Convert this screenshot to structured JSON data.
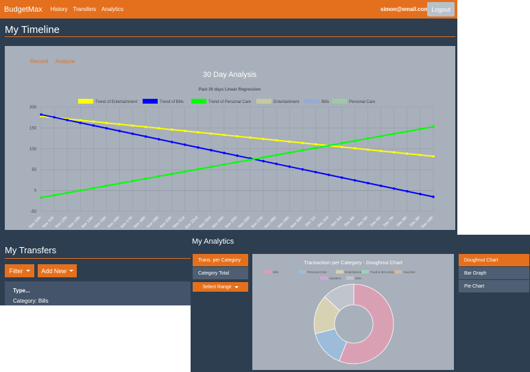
{
  "nav": {
    "brand": "BudgetMax",
    "links": [
      "History",
      "Transfers",
      "Analytics"
    ],
    "email": "simon@email.com",
    "logout": "Logout",
    "accent": "#e4701e"
  },
  "timeline": {
    "title": "My Timeline",
    "tabs": [
      "Record",
      "Analyze"
    ]
  },
  "chart_data": {
    "type": "line",
    "title": "30 Day Analysis",
    "subtitle": "Past 30 days Linear Regression",
    "legend": [
      {
        "name": "Trend of Entertainment",
        "color": "#ffff00"
      },
      {
        "name": "Trend of Bills",
        "color": "#0000ff"
      },
      {
        "name": "Trend of Personal Care",
        "color": "#00ff00"
      },
      {
        "name": "Entertainment",
        "color": "#c8c8a0"
      },
      {
        "name": "Bills",
        "color": "#9ba8d4"
      },
      {
        "name": "Personal Care",
        "color": "#a0c8a8"
      }
    ],
    "legend_position": "top",
    "yticks": [
      "200",
      "150",
      "100",
      "50",
      "0",
      "-50"
    ],
    "ylim": [
      -50,
      200
    ],
    "x": [
      "Nov 10th",
      "Nov 11th",
      "Nov 12th",
      "Nov 13th",
      "Nov 14th",
      "Nov 15th",
      "Nov 16th",
      "Nov 17th",
      "Nov 18th",
      "Nov 19th",
      "Nov 20th",
      "Nov 21st",
      "Nov 22nd",
      "Nov 23rd",
      "Nov 24th",
      "Nov 25th",
      "Nov 26th",
      "Nov 27th",
      "Nov 28th",
      "Nov 29th",
      "Nov 30th",
      "Dec 1st",
      "Dec 2nd",
      "Dec 3rd",
      "Dec 4th",
      "Dec 5th",
      "Dec 6th",
      "Dec 7th",
      "Dec 8th",
      "Dec 9th",
      "Dec 10th"
    ],
    "series": [
      {
        "name": "Trend of Entertainment",
        "color": "#ffff00",
        "start": 178,
        "end": 82
      },
      {
        "name": "Trend of Bills",
        "color": "#0000ff",
        "start": 182,
        "end": -15
      },
      {
        "name": "Trend of Personal Care",
        "color": "#00ff00",
        "start": -17,
        "end": 153
      }
    ],
    "grid": true
  },
  "transfers": {
    "title": "My Transfers",
    "filter": "Filter",
    "add_new": "Add New",
    "type_label": "Type...",
    "type_value": "Category: Bills"
  },
  "analytics": {
    "title": "My Analytics",
    "left_buttons": [
      "Trans. per Category",
      "Category Total",
      "Select Range"
    ],
    "right_buttons": [
      "Doughnut Chart",
      "Bar Graph",
      "Pie Chart"
    ],
    "donut_title": "Transaction per Category - Doughnut Chart",
    "donut_legend": [
      {
        "name": "Bills",
        "color": "#d9a0b4"
      },
      {
        "name": "Personal Care",
        "color": "#9dbcd9"
      },
      {
        "name": "Entertainment",
        "color": "#d8d2b4"
      },
      {
        "name": "Food & Groceries",
        "color": "#9ed1b9"
      },
      {
        "name": "Gasoline",
        "color": "#d7b89a"
      },
      {
        "name": "Vacation",
        "color": "#d0a8d8"
      },
      {
        "name": "Misc",
        "color": "#c0c4cc"
      }
    ],
    "donut_values": [
      56,
      15,
      16,
      0,
      0,
      0,
      13
    ],
    "donut_colors": [
      "#d9a0b4",
      "#9dbcd9",
      "#d8d2b4",
      "#9ed1b9",
      "#d7b89a",
      "#d0a8d8",
      "#c0c4cc"
    ]
  }
}
